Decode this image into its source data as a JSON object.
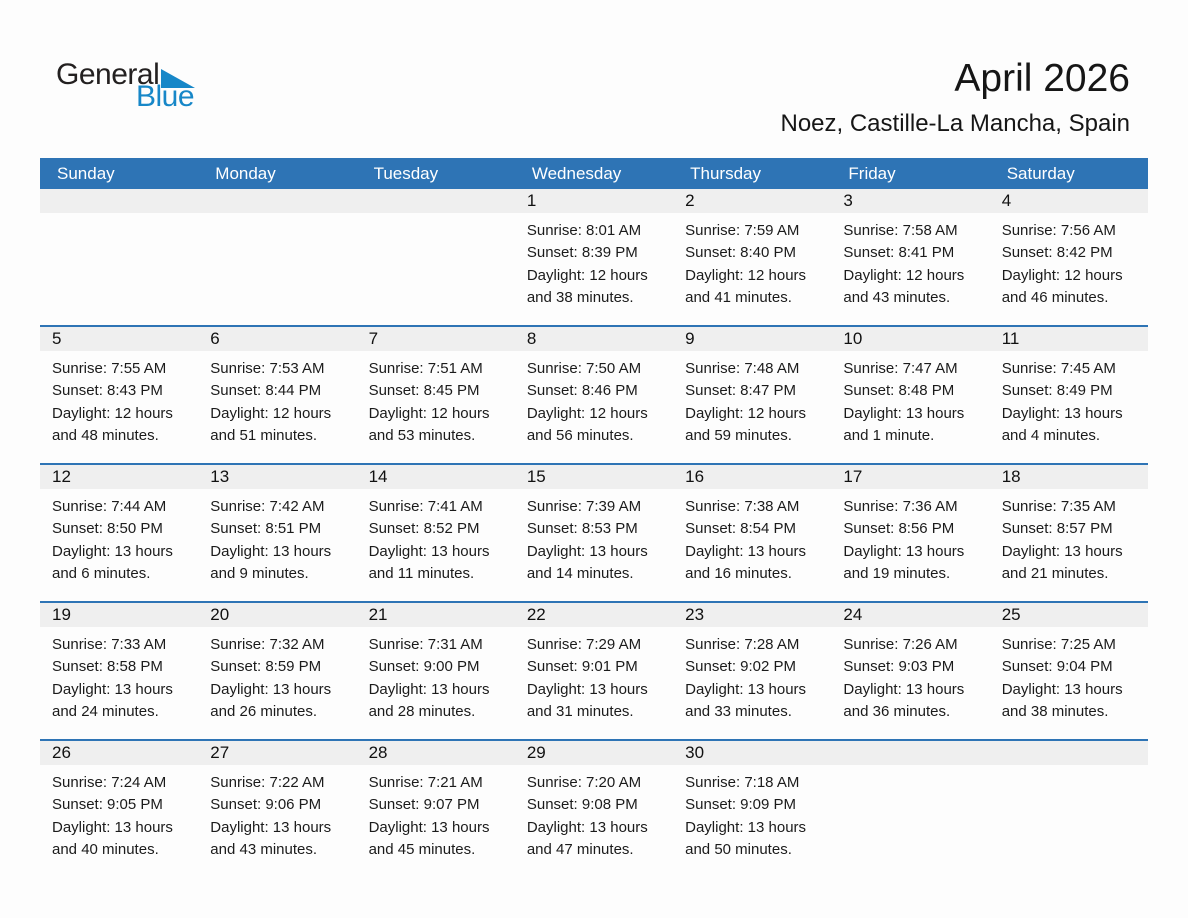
{
  "logo": {
    "general": "General",
    "blue": "Blue"
  },
  "title": "April 2026",
  "subtitle": "Noez, Castille-La Mancha, Spain",
  "colors": {
    "header_bg": "#2E74B5",
    "line_blue": "#2E74B5",
    "band_bg": "#EFEFEF",
    "logo_blue": "#1787C8"
  },
  "weekdays": [
    "Sunday",
    "Monday",
    "Tuesday",
    "Wednesday",
    "Thursday",
    "Friday",
    "Saturday"
  ],
  "weeks": [
    [
      null,
      null,
      null,
      {
        "day": "1",
        "sunrise": "Sunrise: 8:01 AM",
        "sunset": "Sunset: 8:39 PM",
        "daylight": "Daylight: 12 hours and 38 minutes."
      },
      {
        "day": "2",
        "sunrise": "Sunrise: 7:59 AM",
        "sunset": "Sunset: 8:40 PM",
        "daylight": "Daylight: 12 hours and 41 minutes."
      },
      {
        "day": "3",
        "sunrise": "Sunrise: 7:58 AM",
        "sunset": "Sunset: 8:41 PM",
        "daylight": "Daylight: 12 hours and 43 minutes."
      },
      {
        "day": "4",
        "sunrise": "Sunrise: 7:56 AM",
        "sunset": "Sunset: 8:42 PM",
        "daylight": "Daylight: 12 hours and 46 minutes."
      }
    ],
    [
      {
        "day": "5",
        "sunrise": "Sunrise: 7:55 AM",
        "sunset": "Sunset: 8:43 PM",
        "daylight": "Daylight: 12 hours and 48 minutes."
      },
      {
        "day": "6",
        "sunrise": "Sunrise: 7:53 AM",
        "sunset": "Sunset: 8:44 PM",
        "daylight": "Daylight: 12 hours and 51 minutes."
      },
      {
        "day": "7",
        "sunrise": "Sunrise: 7:51 AM",
        "sunset": "Sunset: 8:45 PM",
        "daylight": "Daylight: 12 hours and 53 minutes."
      },
      {
        "day": "8",
        "sunrise": "Sunrise: 7:50 AM",
        "sunset": "Sunset: 8:46 PM",
        "daylight": "Daylight: 12 hours and 56 minutes."
      },
      {
        "day": "9",
        "sunrise": "Sunrise: 7:48 AM",
        "sunset": "Sunset: 8:47 PM",
        "daylight": "Daylight: 12 hours and 59 minutes."
      },
      {
        "day": "10",
        "sunrise": "Sunrise: 7:47 AM",
        "sunset": "Sunset: 8:48 PM",
        "daylight": "Daylight: 13 hours and 1 minute."
      },
      {
        "day": "11",
        "sunrise": "Sunrise: 7:45 AM",
        "sunset": "Sunset: 8:49 PM",
        "daylight": "Daylight: 13 hours and 4 minutes."
      }
    ],
    [
      {
        "day": "12",
        "sunrise": "Sunrise: 7:44 AM",
        "sunset": "Sunset: 8:50 PM",
        "daylight": "Daylight: 13 hours and 6 minutes."
      },
      {
        "day": "13",
        "sunrise": "Sunrise: 7:42 AM",
        "sunset": "Sunset: 8:51 PM",
        "daylight": "Daylight: 13 hours and 9 minutes."
      },
      {
        "day": "14",
        "sunrise": "Sunrise: 7:41 AM",
        "sunset": "Sunset: 8:52 PM",
        "daylight": "Daylight: 13 hours and 11 minutes."
      },
      {
        "day": "15",
        "sunrise": "Sunrise: 7:39 AM",
        "sunset": "Sunset: 8:53 PM",
        "daylight": "Daylight: 13 hours and 14 minutes."
      },
      {
        "day": "16",
        "sunrise": "Sunrise: 7:38 AM",
        "sunset": "Sunset: 8:54 PM",
        "daylight": "Daylight: 13 hours and 16 minutes."
      },
      {
        "day": "17",
        "sunrise": "Sunrise: 7:36 AM",
        "sunset": "Sunset: 8:56 PM",
        "daylight": "Daylight: 13 hours and 19 minutes."
      },
      {
        "day": "18",
        "sunrise": "Sunrise: 7:35 AM",
        "sunset": "Sunset: 8:57 PM",
        "daylight": "Daylight: 13 hours and 21 minutes."
      }
    ],
    [
      {
        "day": "19",
        "sunrise": "Sunrise: 7:33 AM",
        "sunset": "Sunset: 8:58 PM",
        "daylight": "Daylight: 13 hours and 24 minutes."
      },
      {
        "day": "20",
        "sunrise": "Sunrise: 7:32 AM",
        "sunset": "Sunset: 8:59 PM",
        "daylight": "Daylight: 13 hours and 26 minutes."
      },
      {
        "day": "21",
        "sunrise": "Sunrise: 7:31 AM",
        "sunset": "Sunset: 9:00 PM",
        "daylight": "Daylight: 13 hours and 28 minutes."
      },
      {
        "day": "22",
        "sunrise": "Sunrise: 7:29 AM",
        "sunset": "Sunset: 9:01 PM",
        "daylight": "Daylight: 13 hours and 31 minutes."
      },
      {
        "day": "23",
        "sunrise": "Sunrise: 7:28 AM",
        "sunset": "Sunset: 9:02 PM",
        "daylight": "Daylight: 13 hours and 33 minutes."
      },
      {
        "day": "24",
        "sunrise": "Sunrise: 7:26 AM",
        "sunset": "Sunset: 9:03 PM",
        "daylight": "Daylight: 13 hours and 36 minutes."
      },
      {
        "day": "25",
        "sunrise": "Sunrise: 7:25 AM",
        "sunset": "Sunset: 9:04 PM",
        "daylight": "Daylight: 13 hours and 38 minutes."
      }
    ],
    [
      {
        "day": "26",
        "sunrise": "Sunrise: 7:24 AM",
        "sunset": "Sunset: 9:05 PM",
        "daylight": "Daylight: 13 hours and 40 minutes."
      },
      {
        "day": "27",
        "sunrise": "Sunrise: 7:22 AM",
        "sunset": "Sunset: 9:06 PM",
        "daylight": "Daylight: 13 hours and 43 minutes."
      },
      {
        "day": "28",
        "sunrise": "Sunrise: 7:21 AM",
        "sunset": "Sunset: 9:07 PM",
        "daylight": "Daylight: 13 hours and 45 minutes."
      },
      {
        "day": "29",
        "sunrise": "Sunrise: 7:20 AM",
        "sunset": "Sunset: 9:08 PM",
        "daylight": "Daylight: 13 hours and 47 minutes."
      },
      {
        "day": "30",
        "sunrise": "Sunrise: 7:18 AM",
        "sunset": "Sunset: 9:09 PM",
        "daylight": "Daylight: 13 hours and 50 minutes."
      },
      null,
      null
    ]
  ]
}
